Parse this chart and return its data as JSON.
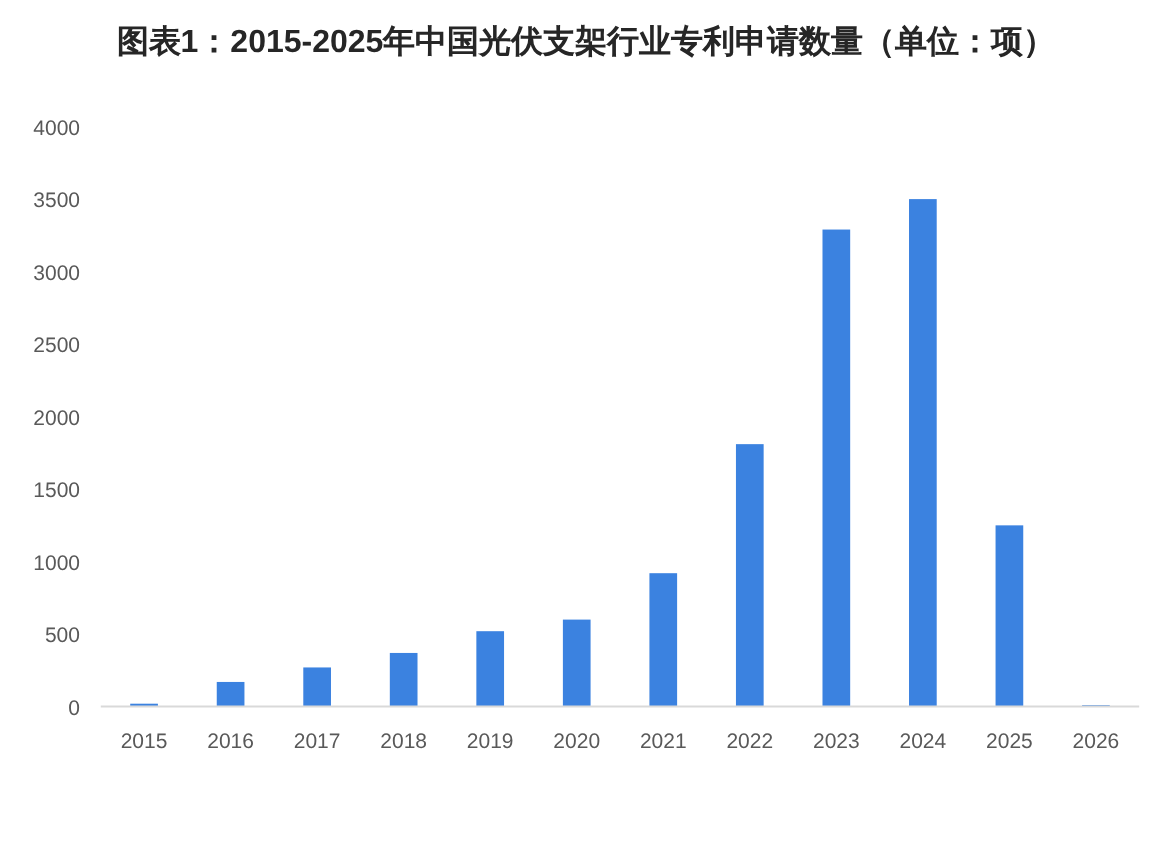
{
  "chart_data": {
    "type": "bar",
    "title": "图表1：2015-2025年中国光伏支架行业专利申请数量（单位：项）",
    "categories": [
      "2015",
      "2016",
      "2017",
      "2018",
      "2019",
      "2020",
      "2021",
      "2022",
      "2023",
      "2024",
      "2025",
      "2026"
    ],
    "values": [
      20,
      170,
      270,
      370,
      520,
      600,
      920,
      1810,
      3290,
      3500,
      1250,
      10
    ],
    "color": "#3b82e0",
    "ylim": [
      0,
      4000
    ],
    "yticks": [
      0,
      500,
      1000,
      1500,
      2000,
      2500,
      3000,
      3500,
      4000
    ]
  }
}
